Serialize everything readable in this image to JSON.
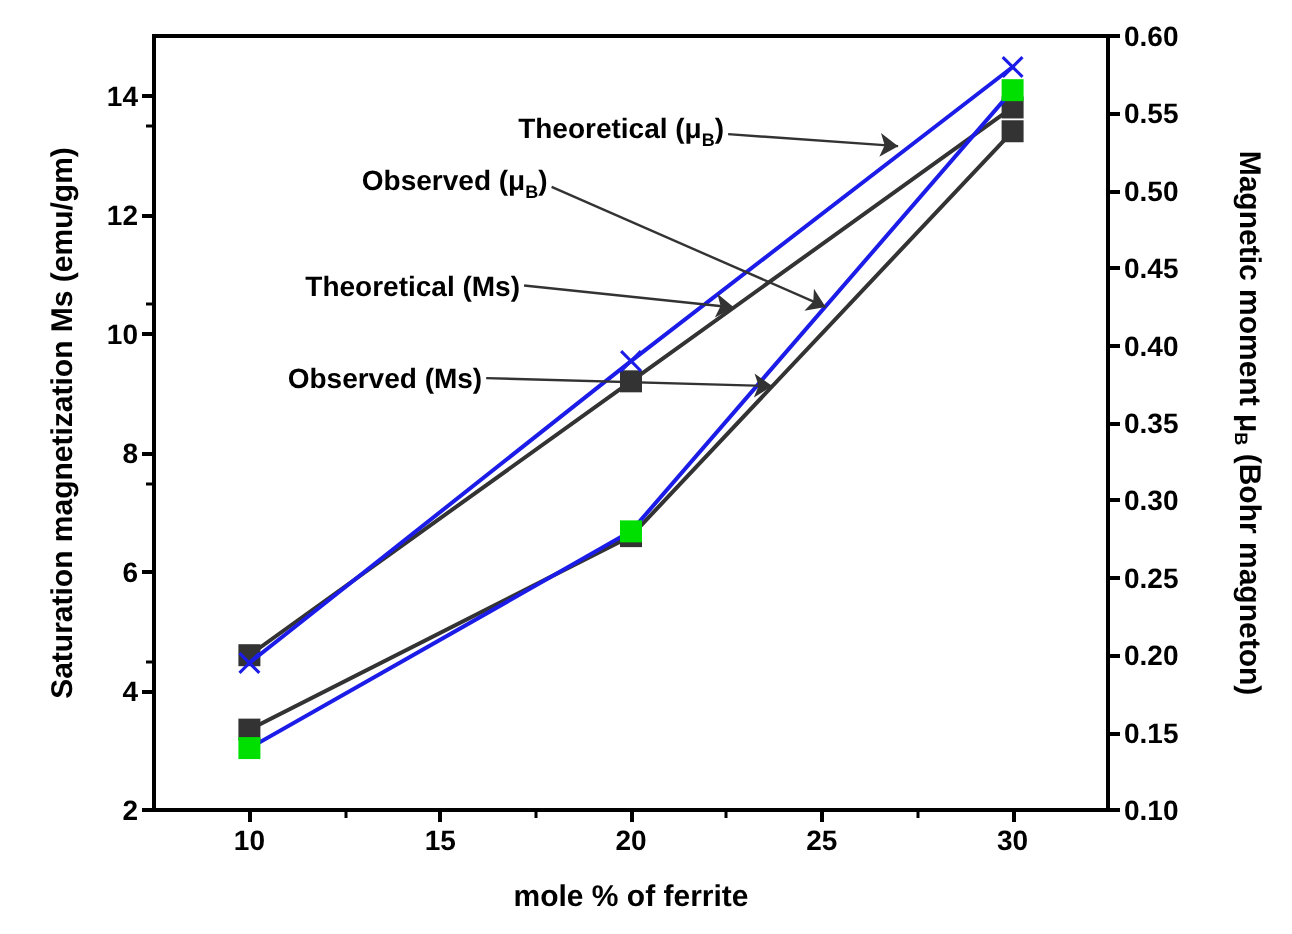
{
  "chart_data": {
    "type": "line",
    "xlabel": "mole % of ferrite",
    "ylabel": "Saturation magnetization Ms (emu/gm)",
    "y2label": "Magnetic moment μ$_{B}$ (Bohr magneton)",
    "x": [
      10,
      20,
      30
    ],
    "series": [
      {
        "color": "#1c1ce8",
        "marker": "cross",
        "axis": "y2",
        "values": [
          0.195,
          0.39,
          0.58
        ]
      },
      {
        "color": "#1c1ce8",
        "colors": [
          "#00e000",
          "#00e000",
          "#00e000"
        ],
        "marker": "square",
        "axis": "y2",
        "values": [
          0.14,
          0.28,
          0.565
        ]
      },
      {
        "color": "#333333",
        "marker": "square",
        "values": [
          4.6,
          9.2,
          13.8
        ]
      },
      {
        "color": "#333333",
        "marker": "square",
        "values": [
          3.35,
          6.6,
          13.4
        ]
      }
    ],
    "annotations": [
      {
        "text": "Theoretical (μ$_{B}$)",
        "x": 27.0,
        "y": 13.15
      },
      {
        "text": "Observed (μ$_{B}$)",
        "x": 25.1,
        "y": 10.45
      },
      {
        "text": "Theoretical (Ms)",
        "x": 22.7,
        "y": 10.44
      },
      {
        "text": "Observed (Ms)",
        "x": 23.7,
        "y": 9.12
      }
    ],
    "xlim": [
      7.5,
      32.5
    ],
    "xticks": [
      10,
      15,
      20,
      25,
      30
    ],
    "ylim": [
      2,
      15
    ],
    "yticks": [
      2,
      4,
      6,
      8,
      10,
      12,
      14
    ],
    "y2lim": [
      0.1,
      0.6
    ],
    "y2ticks": [
      {
        "value": 0.1,
        "label": "0.10"
      },
      {
        "value": 0.15,
        "label": "0.15"
      },
      {
        "value": 0.2,
        "label": "0.20"
      },
      {
        "value": 0.25,
        "label": "0.25"
      },
      {
        "value": 0.3,
        "label": "0.30"
      },
      {
        "value": 0.35,
        "label": "0.35"
      },
      {
        "value": 0.4,
        "label": "0.40"
      },
      {
        "value": 0.45,
        "label": "0.45"
      },
      {
        "value": 0.5,
        "label": "0.50"
      },
      {
        "value": 0.55,
        "label": "0.55"
      },
      {
        "value": 0.6,
        "label": "0.60"
      }
    ],
    "grid": false
  }
}
